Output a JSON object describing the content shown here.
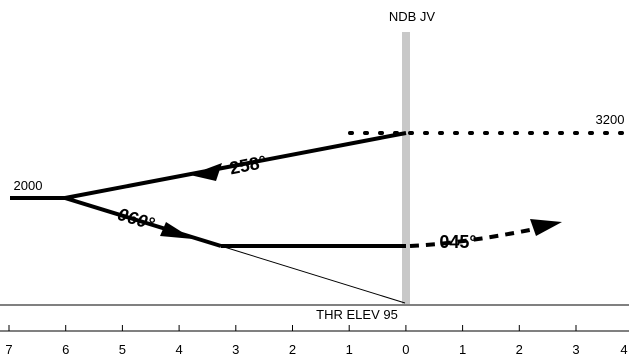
{
  "beacon": {
    "name": "NDB JV"
  },
  "altitudes": {
    "missed_approach": "3200",
    "procedure_turn": "2000"
  },
  "headings": {
    "outbound": "258°",
    "inbound": "060°",
    "missed": "045°"
  },
  "threshold": {
    "label": "THR ELEV 95"
  },
  "distance_scale": {
    "ticks": [
      "7",
      "6",
      "5",
      "4",
      "3",
      "2",
      "1",
      "0",
      "1",
      "2",
      "3",
      "4"
    ]
  },
  "colors": {
    "beacon_bar": "#c8c8c8",
    "ink": "#000000"
  }
}
